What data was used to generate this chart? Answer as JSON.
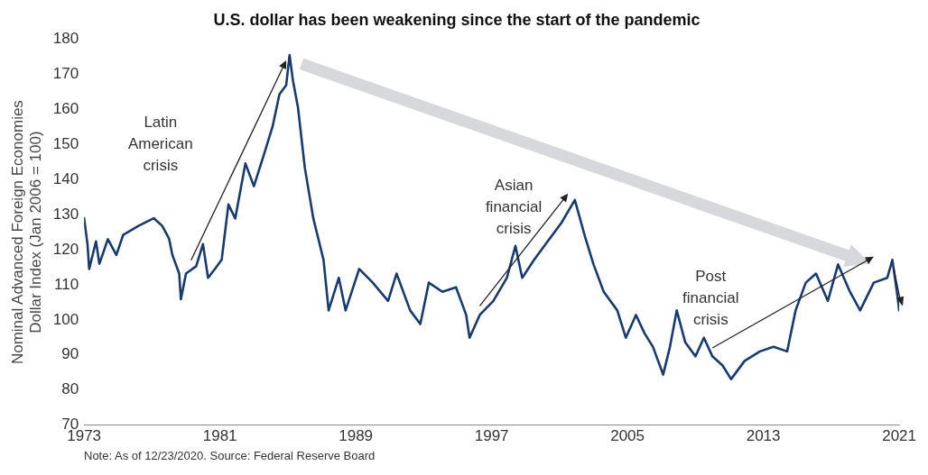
{
  "chart_data": {
    "type": "line",
    "title": "U.S. dollar has been weakening since the start of the pandemic",
    "ylabel": "Nominal Advanced Foreign Economies Dollar Index (Jan 2006 = 100)",
    "x": [
      1973.0,
      1973.2,
      1973.3,
      1973.7,
      1973.9,
      1974.4,
      1974.9,
      1975.3,
      1976.2,
      1977.1,
      1977.6,
      1978.0,
      1978.2,
      1978.6,
      1978.7,
      1979.0,
      1979.6,
      1980.0,
      1980.3,
      1980.7,
      1981.1,
      1981.5,
      1981.9,
      1982.5,
      1983.0,
      1983.6,
      1984.1,
      1984.5,
      1984.9,
      1985.1,
      1985.3,
      1985.6,
      1986.0,
      1986.5,
      1987.1,
      1987.4,
      1988.0,
      1988.4,
      1989.2,
      1990.0,
      1990.9,
      1991.4,
      1992.2,
      1992.8,
      1993.3,
      1994.1,
      1994.9,
      1995.5,
      1995.7,
      1996.3,
      1997.1,
      1997.9,
      1998.4,
      1998.8,
      1999.5,
      2000.3,
      2001.1,
      2001.9,
      2002.5,
      2003.0,
      2003.6,
      2004.4,
      2004.9,
      2005.5,
      2006.0,
      2006.5,
      2007.1,
      2007.5,
      2007.9,
      2008.4,
      2009.0,
      2009.5,
      2010.0,
      2010.6,
      2011.1,
      2011.9,
      2012.8,
      2013.6,
      2014.4,
      2014.9,
      2015.5,
      2016.1,
      2016.8,
      2017.4,
      2018.1,
      2018.7,
      2019.5,
      2020.3,
      2020.6,
      2020.9,
      2021.0
    ],
    "series": [
      {
        "color": "#173a70",
        "values": [
          129,
          121.6,
          114.5,
          122.4,
          116,
          123,
          118.5,
          124.2,
          126.8,
          129,
          126.8,
          123.2,
          118.5,
          113.2,
          105.9,
          113.2,
          115.3,
          121.6,
          112,
          114.5,
          117.1,
          132.9,
          128.9,
          144.6,
          138.1,
          147.3,
          155.1,
          164.3,
          166.9,
          175.5,
          168.2,
          160.4,
          143.3,
          128.9,
          117.1,
          102.7,
          112,
          102.7,
          114.5,
          110.6,
          105.4,
          113.2,
          102.7,
          98.8,
          110.6,
          108,
          109.3,
          101.4,
          94.9,
          101.4,
          105.4,
          112,
          121.1,
          112,
          117.1,
          122.4,
          127.6,
          134.2,
          123.7,
          115.8,
          108,
          102.7,
          94.9,
          101.4,
          96.2,
          92.3,
          84.4,
          92.3,
          102.7,
          93.6,
          89.6,
          94.9,
          89.6,
          87,
          83.1,
          88.3,
          91,
          92.3,
          91,
          102.7,
          110.6,
          113.2,
          105.4,
          115.8,
          108,
          102.7,
          110.6,
          112,
          117.1,
          106.7,
          102.7
        ]
      }
    ],
    "xlim": [
      1973,
      2021
    ],
    "xticks": [
      1973,
      1981,
      1989,
      1997,
      2005,
      2013,
      2021
    ],
    "ylim": [
      70,
      180
    ],
    "yticks": [
      70,
      80,
      90,
      100,
      110,
      120,
      130,
      140,
      150,
      160,
      170,
      180
    ],
    "grid": false,
    "legend": false,
    "marker": "none",
    "line_style": "solid",
    "annotations": [
      "Latin American crisis",
      "Asian financial crisis",
      "Post financial crisis",
      "Note: As of 12/23/2020. Source: Federal Reserve Board"
    ]
  }
}
